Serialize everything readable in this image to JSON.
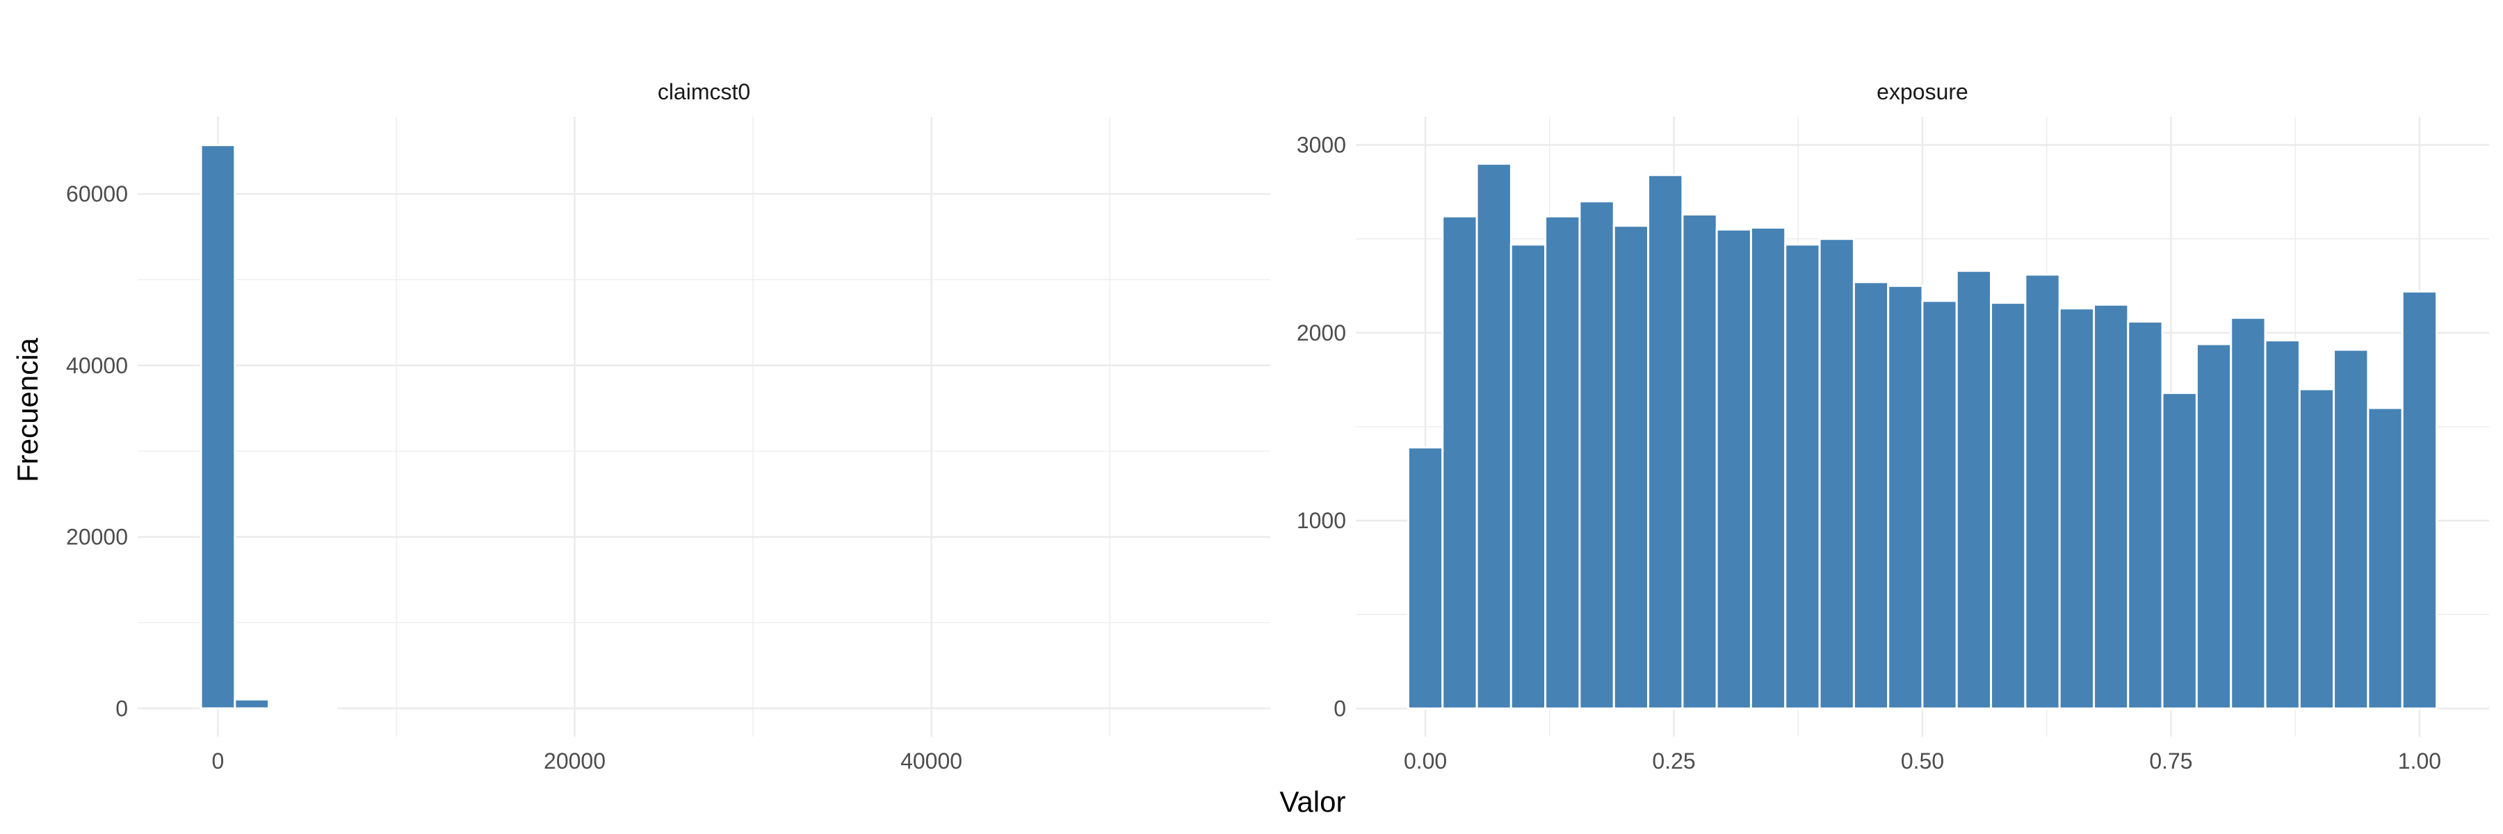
{
  "chart_data": {
    "type": "bar",
    "xlabel": "Valor",
    "ylabel": "Frecuencia",
    "bar_color": "#4682B4",
    "background": "#FFFFFF",
    "grid": true,
    "legend": "none",
    "facets": [
      {
        "title": "claimcst0",
        "xlim": [
          -4500,
          59000
        ],
        "ylim": [
          -3300,
          69000
        ],
        "x_ticks": [
          0,
          20000,
          40000
        ],
        "y_ticks": [
          0,
          20000,
          40000,
          60000
        ],
        "bin_width": 1900,
        "bins": [
          {
            "x": 0,
            "count": 65700
          },
          {
            "x": 1900,
            "count": 1050
          },
          {
            "x": 3800,
            "count": 220
          },
          {
            "x": 5700,
            "count": 30
          }
        ]
      },
      {
        "title": "exposure",
        "xlim": [
          -0.07,
          1.07
        ],
        "ylim": [
          -150,
          3150
        ],
        "x_ticks": [
          0.0,
          0.25,
          0.5,
          0.75,
          1.0
        ],
        "x_tick_labels": [
          "0.00",
          "0.25",
          "0.50",
          "0.75",
          "1.00"
        ],
        "y_ticks": [
          0,
          1000,
          2000,
          3000
        ],
        "bin_width": 0.0345,
        "bins": [
          {
            "x": 0.0,
            "count": 1390
          },
          {
            "x": 0.0345,
            "count": 2620
          },
          {
            "x": 0.069,
            "count": 2900
          },
          {
            "x": 0.1034,
            "count": 2470
          },
          {
            "x": 0.1379,
            "count": 2620
          },
          {
            "x": 0.1724,
            "count": 2700
          },
          {
            "x": 0.2069,
            "count": 2570
          },
          {
            "x": 0.2414,
            "count": 2840
          },
          {
            "x": 0.2759,
            "count": 2630
          },
          {
            "x": 0.3103,
            "count": 2550
          },
          {
            "x": 0.3448,
            "count": 2560
          },
          {
            "x": 0.3793,
            "count": 2470
          },
          {
            "x": 0.4138,
            "count": 2500
          },
          {
            "x": 0.4483,
            "count": 2270
          },
          {
            "x": 0.4828,
            "count": 2250
          },
          {
            "x": 0.5172,
            "count": 2170
          },
          {
            "x": 0.5517,
            "count": 2330
          },
          {
            "x": 0.5862,
            "count": 2160
          },
          {
            "x": 0.6207,
            "count": 2310
          },
          {
            "x": 0.6552,
            "count": 2130
          },
          {
            "x": 0.6897,
            "count": 2150
          },
          {
            "x": 0.7241,
            "count": 2060
          },
          {
            "x": 0.7586,
            "count": 1680
          },
          {
            "x": 0.7931,
            "count": 1940
          },
          {
            "x": 0.8276,
            "count": 2080
          },
          {
            "x": 0.8621,
            "count": 1960
          },
          {
            "x": 0.8966,
            "count": 1700
          },
          {
            "x": 0.931,
            "count": 1910
          },
          {
            "x": 0.9655,
            "count": 1600
          },
          {
            "x": 1.0,
            "count": 2220
          }
        ]
      }
    ]
  }
}
